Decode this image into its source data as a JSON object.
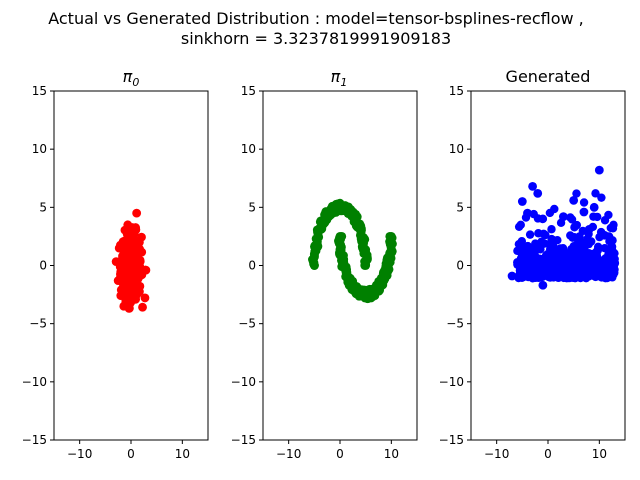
{
  "figure": {
    "title_line1": "Actual vs Generated Distribution : model=tensor-bsplines-recflow ,",
    "title_line2": "sinkhorn = 3.3237819991909183"
  },
  "chart_data": [
    {
      "type": "scatter",
      "title": "π",
      "title_subscript": "0",
      "color": "#ff0000",
      "xlim": [
        -15,
        15
      ],
      "ylim": [
        -15,
        15
      ],
      "xticks": [
        -10,
        0,
        10
      ],
      "yticks": [
        -15,
        -10,
        -5,
        0,
        5,
        10,
        15
      ],
      "grid": false,
      "distribution": "gaussian blob",
      "center": [
        0,
        0
      ],
      "spread": [
        1.0,
        1.4
      ],
      "points": [
        [
          1.1,
          4.5
        ],
        [
          -1.4,
          -3.5
        ],
        [
          -2.5,
          -1.3
        ],
        [
          2.9,
          -0.4
        ],
        [
          -0.1,
          -3.2
        ]
      ]
    },
    {
      "type": "scatter",
      "title": "π",
      "title_subscript": "1",
      "color": "#008000",
      "xlim": [
        -15,
        15
      ],
      "ylim": [
        -15,
        15
      ],
      "xticks": [
        -10,
        0,
        10
      ],
      "yticks": [
        -15,
        -10,
        -5,
        0,
        5,
        10,
        15
      ],
      "grid": false,
      "distribution": "two moons",
      "upper_arc": {
        "center": [
          0,
          0
        ],
        "radius": 5
      },
      "lower_arc": {
        "center": [
          5,
          0
        ],
        "radius": 5
      },
      "points": [
        [
          -5,
          0
        ],
        [
          0,
          5
        ],
        [
          5,
          0
        ],
        [
          10,
          2.5
        ],
        [
          5,
          -2.5
        ],
        [
          0,
          2.5
        ]
      ]
    },
    {
      "type": "scatter",
      "title": "Generated",
      "color": "#0000ff",
      "xlim": [
        -15,
        15
      ],
      "ylim": [
        -15,
        15
      ],
      "xticks": [
        -10,
        0,
        10
      ],
      "yticks": [
        -15,
        -10,
        -5,
        0,
        5,
        10,
        15
      ],
      "grid": false,
      "distribution": "noisy cloud",
      "points": [
        [
          10,
          8.2
        ],
        [
          -3,
          6.8
        ],
        [
          -2,
          6.2
        ],
        [
          9,
          5.0
        ],
        [
          -5,
          5.5
        ],
        [
          5,
          5.6
        ],
        [
          7,
          4.6
        ],
        [
          -1,
          -1.7
        ],
        [
          -7,
          -0.9
        ],
        [
          13,
          0.2
        ],
        [
          11,
          2.6
        ],
        [
          -4,
          4.5
        ],
        [
          3,
          4.2
        ],
        [
          8,
          3.1
        ]
      ]
    }
  ]
}
